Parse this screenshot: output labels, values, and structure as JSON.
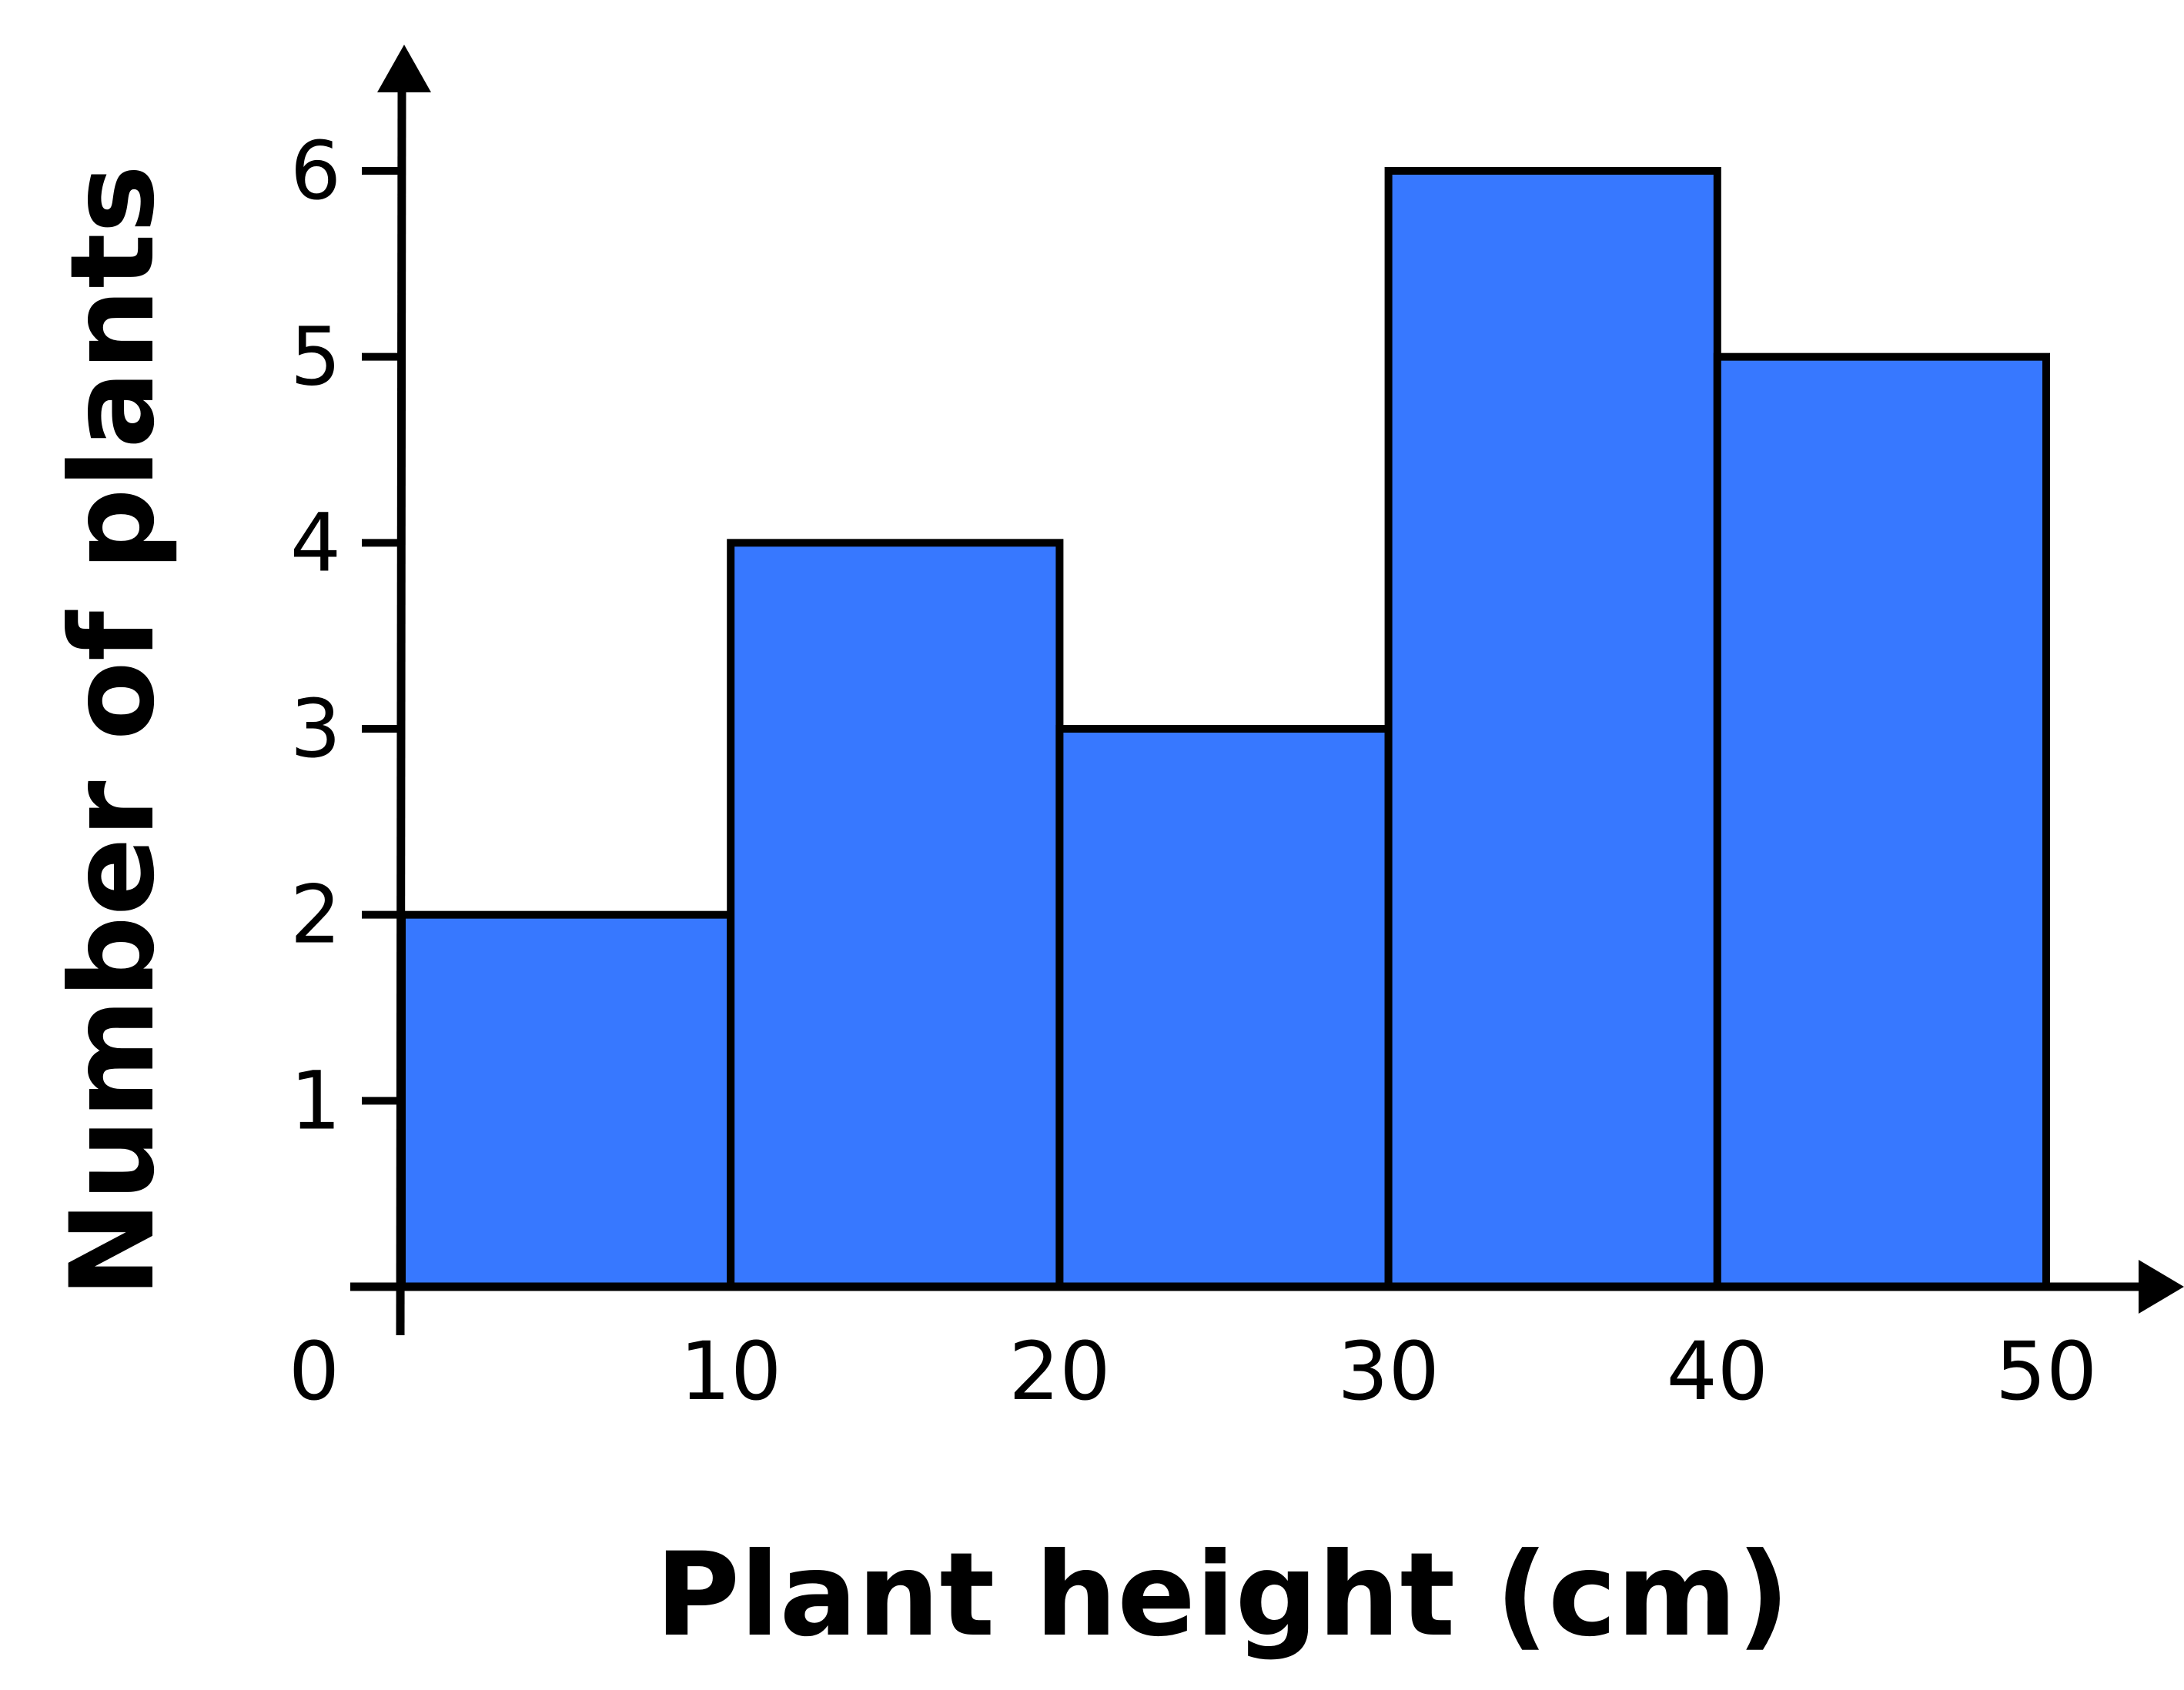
{
  "chart_data": {
    "type": "bar",
    "variant": "histogram",
    "bins": [
      {
        "start": 0,
        "end": 10,
        "value": 2
      },
      {
        "start": 10,
        "end": 20,
        "value": 4
      },
      {
        "start": 20,
        "end": 30,
        "value": 3
      },
      {
        "start": 30,
        "end": 40,
        "value": 6
      },
      {
        "start": 40,
        "end": 50,
        "value": 5
      }
    ],
    "x_ticks": [
      "0",
      "10",
      "20",
      "30",
      "40",
      "50"
    ],
    "y_ticks": [
      "1",
      "2",
      "3",
      "4",
      "5",
      "6"
    ],
    "title": "",
    "xlabel": "Plant height (cm)",
    "ylabel": "Number of plants",
    "xlim": [
      0,
      50
    ],
    "ylim": [
      0,
      6
    ],
    "grid": false,
    "legend": "none",
    "colors": {
      "bar_fill": "#3778FF",
      "bar_stroke": "#000000",
      "axis": "#000000"
    }
  }
}
